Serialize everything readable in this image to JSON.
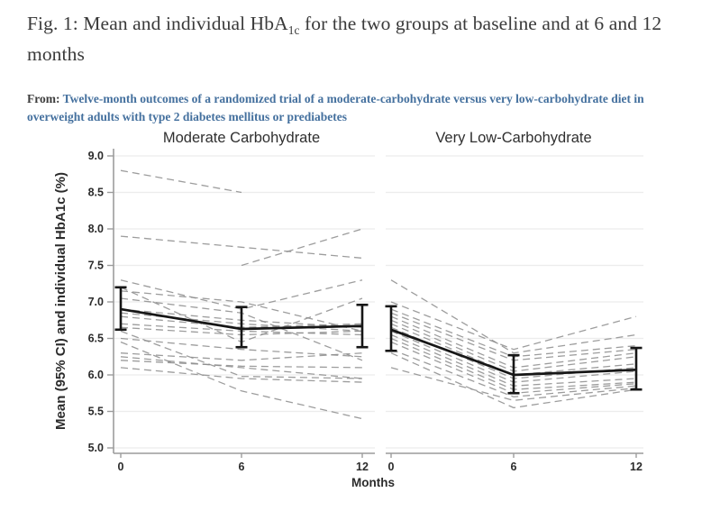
{
  "header": {
    "title_pre": "Fig. 1: Mean and individual HbA",
    "title_sub": "1c",
    "title_post": " for the two groups at baseline and at 6 and 12 months",
    "source_label": "From:",
    "source_link_text": "Twelve-month outcomes of a randomized trial of a moderate-carbohydrate versus very low-carbohydrate diet in overweight adults with type 2 diabetes mellitus or prediabetes",
    "link_color": "#44709e",
    "title_color": "#3a3a3a"
  },
  "chart_data": {
    "type": "line",
    "xlabel": "Months",
    "ylabel": "Mean (95% CI) and individual HbA1c (%)",
    "x": [
      0,
      6,
      12
    ],
    "xticks": [
      "0",
      "6",
      "12"
    ],
    "yticks": [
      "9.0",
      "8.5",
      "8.0",
      "7.5",
      "7.0",
      "6.5",
      "6.0",
      "5.5",
      "5.0"
    ],
    "ylim": [
      5.0,
      9.0
    ],
    "grid": true,
    "legend": "none",
    "panels": [
      {
        "title": "Moderate Carbohydrate",
        "mean": {
          "values": [
            6.9,
            6.63,
            6.67
          ],
          "ci_low": [
            6.62,
            6.38,
            6.38
          ],
          "ci_high": [
            7.2,
            6.93,
            6.96
          ]
        },
        "individuals": [
          [
            8.8,
            8.5,
            null
          ],
          [
            7.9,
            7.75,
            7.6
          ],
          [
            null,
            7.5,
            8.0
          ],
          [
            7.3,
            6.9,
            7.3
          ],
          [
            7.2,
            6.45,
            7.05
          ],
          [
            7.15,
            7.0,
            6.6
          ],
          [
            7.05,
            6.85,
            6.2
          ],
          [
            6.9,
            6.75,
            6.65
          ],
          [
            6.85,
            6.7,
            6.6
          ],
          [
            6.8,
            6.65,
            6.7
          ],
          [
            6.7,
            6.6,
            6.55
          ],
          [
            6.65,
            6.55,
            6.6
          ],
          [
            6.6,
            5.98,
            5.95
          ],
          [
            6.5,
            6.35,
            6.25
          ],
          [
            6.45,
            5.78,
            5.4
          ],
          [
            6.3,
            6.2,
            6.3
          ],
          [
            6.25,
            6.1,
            5.95
          ],
          [
            6.2,
            6.12,
            6.1
          ],
          [
            6.1,
            5.95,
            5.9
          ]
        ]
      },
      {
        "title": "Very Low-Carbohydrate",
        "mean": {
          "values": [
            6.62,
            6.0,
            6.07
          ],
          "ci_low": [
            6.33,
            5.75,
            5.8
          ],
          "ci_high": [
            6.94,
            6.27,
            6.37
          ]
        },
        "individuals": [
          [
            7.3,
            6.3,
            6.55
          ],
          [
            7.0,
            6.35,
            6.8
          ],
          [
            6.9,
            6.25,
            6.4
          ],
          [
            6.85,
            6.2,
            6.35
          ],
          [
            6.8,
            6.1,
            6.3
          ],
          [
            6.75,
            6.05,
            6.25
          ],
          [
            6.7,
            6.0,
            6.15
          ],
          [
            6.65,
            5.95,
            6.1
          ],
          [
            6.6,
            5.9,
            6.05
          ],
          [
            6.55,
            5.85,
            5.95
          ],
          [
            6.5,
            5.8,
            5.9
          ],
          [
            6.45,
            5.75,
            5.88
          ],
          [
            6.35,
            5.7,
            5.85
          ],
          [
            6.3,
            5.55,
            5.8
          ],
          [
            6.1,
            5.65,
            5.82
          ]
        ]
      }
    ],
    "colors": {
      "mean": "#161616",
      "individual": "#8c8c8c",
      "grid": "#ececec",
      "axis": "#9c9c9c",
      "tick_label": "#2b2b2b",
      "panel_title": "#2f2f2f"
    }
  }
}
